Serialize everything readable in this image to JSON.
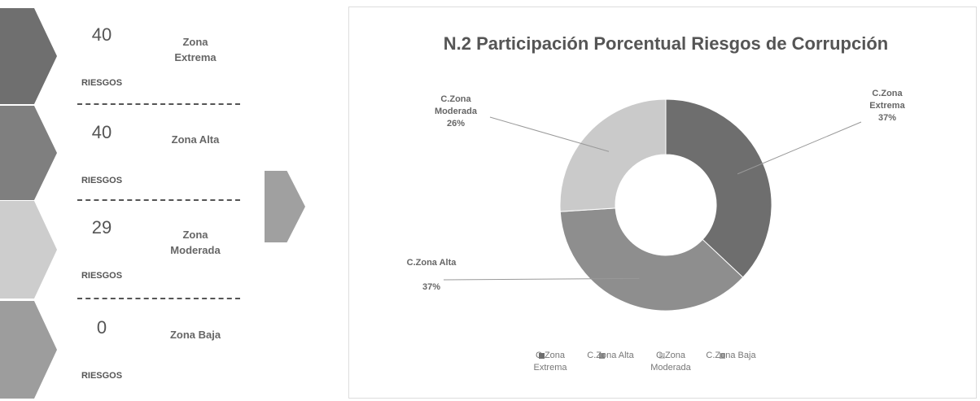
{
  "summary": {
    "items": [
      {
        "count": "40",
        "unit": "RIESGOS",
        "zone": "Zona Extrema",
        "color": "#6f6f6f"
      },
      {
        "count": "40",
        "unit": "RIESGOS",
        "zone": "Zona Alta",
        "color": "#7f7f7f"
      },
      {
        "count": "29",
        "unit": "RIESGOS",
        "zone": "Zona Moderada",
        "color": "#cdcdcd"
      },
      {
        "count": "0",
        "unit": "RIESGOS",
        "zone": "Zona Baja",
        "color": "#9d9d9d"
      }
    ]
  },
  "chart_data": {
    "type": "donut",
    "title": "N.2 Participación Porcentual Riesgos de Corrupción",
    "categories": [
      "C.Zona Extrema",
      "C.Zona Alta",
      "C.Zona Moderada",
      "C.Zona Baja"
    ],
    "values": [
      37,
      37,
      26,
      0
    ],
    "value_labels": [
      "37%",
      "37%",
      "26%",
      null
    ],
    "colors": [
      "#6e6e6e",
      "#8e8e8e",
      "#cacaca",
      "#a5a5a5"
    ],
    "legend": "bottom"
  }
}
